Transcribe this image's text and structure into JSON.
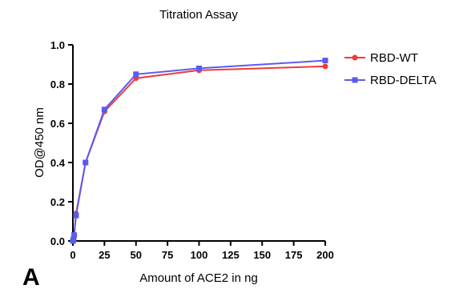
{
  "panel_label": "A",
  "chart_data": {
    "type": "line",
    "title": "Titration Assay",
    "xlabel": "Amount of ACE2 in ng",
    "ylabel": "OD@450 nm",
    "xlim": [
      0,
      200
    ],
    "ylim": [
      0.0,
      1.0
    ],
    "x_ticks": [
      0,
      25,
      50,
      75,
      100,
      125,
      150,
      175,
      200
    ],
    "y_ticks": [
      0.0,
      0.2,
      0.4,
      0.6,
      0.8,
      1.0
    ],
    "x_tick_labels": [
      "0",
      "25",
      "50",
      "75",
      "100",
      "125",
      "150",
      "175",
      "200"
    ],
    "y_tick_labels": [
      "0.0",
      "0.2",
      "0.4",
      "0.6",
      "0.8",
      "1.0"
    ],
    "grid": false,
    "legend_position": "top-right",
    "x": [
      0,
      0.1,
      0.5,
      1,
      2.5,
      10,
      25,
      50,
      100,
      200
    ],
    "series": [
      {
        "name": "RBD-WT",
        "color": "#ee3b3b",
        "marker": "circle",
        "values": [
          0.0,
          0.0,
          0.01,
          0.03,
          0.14,
          0.4,
          0.66,
          0.83,
          0.87,
          0.89
        ]
      },
      {
        "name": "RBD-DELTA",
        "color": "#5b5bf0",
        "marker": "square",
        "values": [
          0.0,
          0.0,
          0.01,
          0.03,
          0.13,
          0.4,
          0.67,
          0.85,
          0.88,
          0.92
        ]
      }
    ]
  }
}
